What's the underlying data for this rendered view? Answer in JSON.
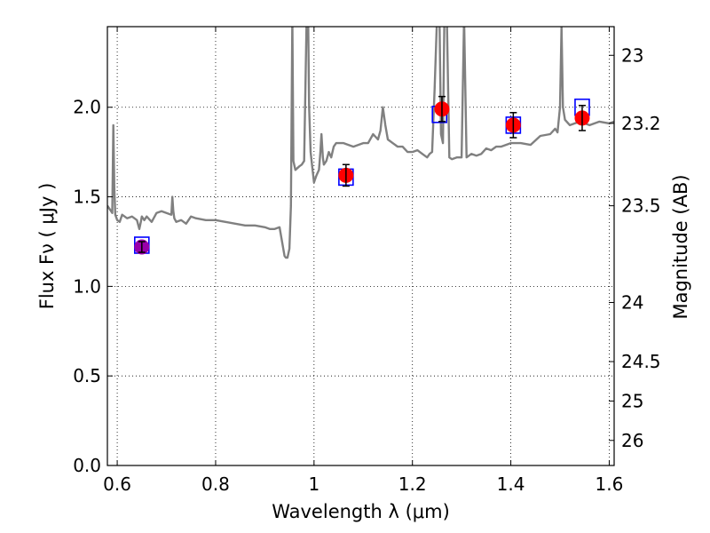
{
  "chart_data": {
    "type": "line",
    "xlabel": "Wavelength  λ (μm)",
    "ylabel": "Flux  Fν  ( μJy )",
    "y2label": "Magnitude (AB)",
    "xlim": [
      0.58,
      1.61
    ],
    "ylim": [
      0.0,
      2.45
    ],
    "grid": true,
    "x_ticks": [
      0.6,
      0.8,
      1.0,
      1.2,
      1.4,
      1.6
    ],
    "x_tick_labels": [
      "0.6",
      "0.8",
      "1",
      "1.2",
      "1.4",
      "1.6"
    ],
    "y_ticks": [
      0.0,
      0.5,
      1.0,
      1.5,
      2.0
    ],
    "y_tick_labels": [
      "0.0",
      "0.5",
      "1.0",
      "1.5",
      "2.0"
    ],
    "y2_ticks": [
      {
        "label": "23",
        "flux": 2.29
      },
      {
        "label": "23.2",
        "flux": 1.91
      },
      {
        "label": "23.5",
        "flux": 1.45
      },
      {
        "label": "24",
        "flux": 0.91
      },
      {
        "label": "24.5",
        "flux": 0.58
      },
      {
        "label": "25",
        "flux": 0.36
      },
      {
        "label": "26",
        "flux": 0.14
      }
    ],
    "colors": {
      "spectrum": "#808080",
      "observed": "#ff0000",
      "model": "#0000ff",
      "overlap": "#9900aa",
      "errorbar": "#000000"
    },
    "series": [
      {
        "kind": "spectrum",
        "x": [
          0.58,
          0.585,
          0.59,
          0.592,
          0.594,
          0.596,
          0.6,
          0.605,
          0.61,
          0.62,
          0.63,
          0.64,
          0.645,
          0.648,
          0.65,
          0.655,
          0.66,
          0.67,
          0.68,
          0.69,
          0.7,
          0.71,
          0.712,
          0.714,
          0.716,
          0.72,
          0.73,
          0.74,
          0.75,
          0.76,
          0.78,
          0.8,
          0.82,
          0.84,
          0.86,
          0.88,
          0.9,
          0.91,
          0.92,
          0.93,
          0.935,
          0.94,
          0.943,
          0.946,
          0.95,
          0.953,
          0.956,
          0.958,
          0.962,
          0.966,
          0.97,
          0.975,
          0.98,
          0.985,
          0.988,
          0.99,
          0.993,
          0.997,
          1.0,
          1.005,
          1.01,
          1.013,
          1.015,
          1.018,
          1.02,
          1.025,
          1.03,
          1.035,
          1.04,
          1.045,
          1.05,
          1.06,
          1.07,
          1.08,
          1.09,
          1.1,
          1.11,
          1.12,
          1.13,
          1.135,
          1.14,
          1.145,
          1.15,
          1.16,
          1.17,
          1.18,
          1.19,
          1.2,
          1.21,
          1.22,
          1.23,
          1.235,
          1.24,
          1.245,
          1.25,
          1.255,
          1.258,
          1.262,
          1.265,
          1.27,
          1.275,
          1.28,
          1.29,
          1.3,
          1.305,
          1.31,
          1.32,
          1.33,
          1.34,
          1.35,
          1.36,
          1.37,
          1.38,
          1.4,
          1.42,
          1.44,
          1.46,
          1.48,
          1.49,
          1.495,
          1.5,
          1.503,
          1.506,
          1.51,
          1.52,
          1.54,
          1.56,
          1.58,
          1.6,
          1.61
        ],
        "y": [
          1.45,
          1.43,
          1.41,
          1.9,
          1.55,
          1.4,
          1.37,
          1.36,
          1.4,
          1.38,
          1.39,
          1.37,
          1.32,
          1.36,
          1.39,
          1.37,
          1.39,
          1.36,
          1.41,
          1.42,
          1.41,
          1.4,
          1.5,
          1.42,
          1.38,
          1.36,
          1.37,
          1.35,
          1.39,
          1.38,
          1.37,
          1.37,
          1.36,
          1.35,
          1.34,
          1.34,
          1.33,
          1.32,
          1.32,
          1.33,
          1.25,
          1.17,
          1.16,
          1.16,
          1.21,
          1.45,
          2.5,
          1.7,
          1.65,
          1.66,
          1.67,
          1.68,
          1.7,
          2.5,
          2.5,
          2.0,
          1.75,
          1.65,
          1.58,
          1.62,
          1.65,
          1.75,
          1.85,
          1.72,
          1.68,
          1.7,
          1.75,
          1.72,
          1.78,
          1.8,
          1.8,
          1.8,
          1.79,
          1.78,
          1.79,
          1.8,
          1.8,
          1.85,
          1.82,
          1.87,
          2.0,
          1.9,
          1.82,
          1.8,
          1.78,
          1.78,
          1.75,
          1.75,
          1.76,
          1.74,
          1.72,
          1.74,
          1.75,
          2.1,
          2.5,
          2.5,
          1.85,
          1.8,
          2.5,
          2.5,
          1.72,
          1.71,
          1.72,
          1.72,
          2.5,
          1.72,
          1.74,
          1.73,
          1.74,
          1.77,
          1.76,
          1.78,
          1.78,
          1.8,
          1.8,
          1.79,
          1.84,
          1.85,
          1.88,
          1.86,
          2.0,
          2.45,
          2.0,
          1.93,
          1.9,
          1.92,
          1.9,
          1.92,
          1.91,
          1.92
        ]
      },
      {
        "kind": "model",
        "name": "",
        "x": [
          0.65,
          1.065,
          1.255,
          1.405,
          1.545
        ],
        "y": [
          1.23,
          1.61,
          1.96,
          1.9,
          2.0
        ]
      },
      {
        "kind": "observed",
        "name": "",
        "x": [
          0.65,
          1.065,
          1.26,
          1.405,
          1.545
        ],
        "y": [
          1.22,
          1.62,
          1.99,
          1.9,
          1.94
        ],
        "err": [
          0.03,
          0.06,
          0.07,
          0.07,
          0.07
        ]
      }
    ]
  }
}
